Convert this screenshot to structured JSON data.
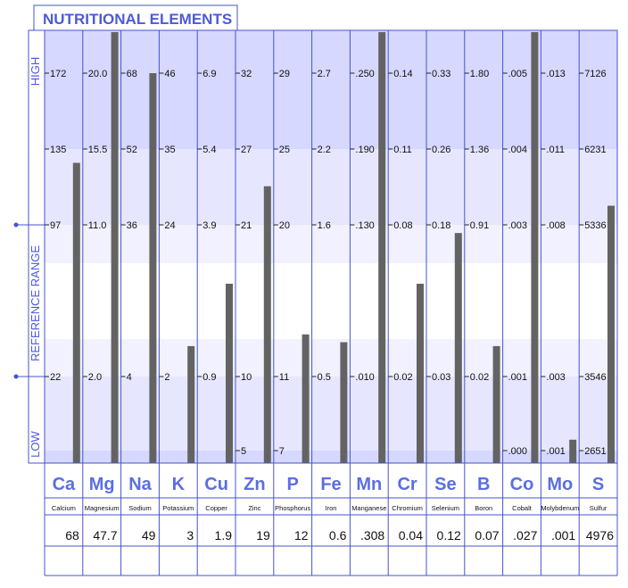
{
  "title": "NUTRITIONAL ELEMENTS",
  "side_labels": {
    "high": "HIGH",
    "reference_range": "REFERENCE RANGE",
    "low": "LOW"
  },
  "colors": {
    "title_text": "#4d5ad8",
    "element_symbol": "#5b6ee1",
    "zone_top_dark": "#d6d8ff",
    "zone_mid": "#e6e7ff",
    "zone_light": "#f1f1ff",
    "zone_white": "#ffffff",
    "bar": "#636363",
    "grid": "#4455cc"
  },
  "chart_data": {
    "type": "bar",
    "title": "NUTRITIONAL ELEMENTS",
    "scale_note": "each column has its own scale; tick values per column at rows HIGH, 135-level, REF-HIGH, REF-LOW, LOW",
    "row_levels": [
      "high",
      "upper",
      "ref_high",
      "ref_low",
      "low"
    ],
    "elements": [
      {
        "symbol": "Ca",
        "name": "Calcium",
        "value_label": "68",
        "value": 68,
        "ticks": [
          "172",
          "135",
          "97",
          "22",
          ""
        ],
        "ticks_num": [
          172,
          135,
          97,
          22
        ]
      },
      {
        "symbol": "Mg",
        "name": "Magnesium",
        "value_label": "47.7",
        "value": 47.7,
        "ticks": [
          "20.0",
          "15.5",
          "11.0",
          "2.0",
          ""
        ],
        "ticks_num": [
          20.0,
          15.5,
          11.0,
          2.0
        ]
      },
      {
        "symbol": "Na",
        "name": "Sodium",
        "value_label": "49",
        "value": 49,
        "ticks": [
          "68",
          "52",
          "36",
          "4",
          ""
        ],
        "ticks_num": [
          68,
          52,
          36,
          4
        ]
      },
      {
        "symbol": "K",
        "name": "Potassium",
        "value_label": "3",
        "value": 3,
        "ticks": [
          "46",
          "35",
          "24",
          "2",
          ""
        ],
        "ticks_num": [
          46,
          35,
          24,
          2
        ]
      },
      {
        "symbol": "Cu",
        "name": "Copper",
        "value_label": "1.9",
        "value": 1.9,
        "ticks": [
          "6.9",
          "5.4",
          "3.9",
          "0.9",
          ""
        ],
        "ticks_num": [
          6.9,
          5.4,
          3.9,
          0.9
        ]
      },
      {
        "symbol": "Zn",
        "name": "Zinc",
        "value_label": "19",
        "value": 19,
        "ticks": [
          "32",
          "27",
          "21",
          "10",
          "5"
        ],
        "ticks_num": [
          32,
          27,
          21,
          10,
          5
        ]
      },
      {
        "symbol": "P",
        "name": "Phosphorus",
        "value_label": "12",
        "value": 12,
        "ticks": [
          "29",
          "25",
          "20",
          "11",
          "7"
        ],
        "ticks_num": [
          29,
          25,
          20,
          11,
          7
        ]
      },
      {
        "symbol": "Fe",
        "name": "Iron",
        "value_label": "0.6",
        "value": 0.6,
        "ticks": [
          "2.7",
          "2.2",
          "1.6",
          "0.5",
          ""
        ],
        "ticks_num": [
          2.7,
          2.2,
          1.6,
          0.5
        ]
      },
      {
        "symbol": "Mn",
        "name": "Manganese",
        "value_label": ".308",
        "value": 0.308,
        "ticks": [
          ".250",
          ".190",
          ".130",
          ".010",
          ""
        ],
        "ticks_num": [
          0.25,
          0.19,
          0.13,
          0.01
        ]
      },
      {
        "symbol": "Cr",
        "name": "Chromium",
        "value_label": "0.04",
        "value": 0.04,
        "ticks": [
          "0.14",
          "0.11",
          "0.08",
          "0.02",
          ""
        ],
        "ticks_num": [
          0.14,
          0.11,
          0.08,
          0.02
        ]
      },
      {
        "symbol": "Se",
        "name": "Selenium",
        "value_label": "0.12",
        "value": 0.12,
        "ticks": [
          "0.33",
          "0.26",
          "0.18",
          "0.03",
          ""
        ],
        "ticks_num": [
          0.33,
          0.26,
          0.18,
          0.03
        ]
      },
      {
        "symbol": "B",
        "name": "Boron",
        "value_label": "0.07",
        "value": 0.07,
        "ticks": [
          "1.80",
          "1.36",
          "0.91",
          "0.02",
          ""
        ],
        "ticks_num": [
          1.8,
          1.36,
          0.91,
          0.02
        ]
      },
      {
        "symbol": "Co",
        "name": "Cobalt",
        "value_label": ".027",
        "value": 0.027,
        "ticks": [
          ".005",
          ".004",
          ".003",
          ".001",
          ".000"
        ],
        "ticks_num": [
          0.005,
          0.004,
          0.003,
          0.001,
          0.0
        ]
      },
      {
        "symbol": "Mo",
        "name": "Molybdenum",
        "value_label": ".001",
        "value": 0.001,
        "ticks": [
          ".013",
          ".011",
          ".008",
          ".003",
          ".001"
        ],
        "ticks_num": [
          0.013,
          0.011,
          0.008,
          0.003,
          0.001
        ]
      },
      {
        "symbol": "S",
        "name": "Sulfur",
        "value_label": "4976",
        "value": 4976,
        "ticks": [
          "7126",
          "6231",
          "5336",
          "3546",
          "2651"
        ],
        "ticks_num": [
          7126,
          6231,
          5336,
          3546,
          2651
        ]
      }
    ],
    "bar_levels": [
      0.77,
      1.2,
      1.0,
      0.3,
      0.46,
      0.71,
      0.33,
      0.31,
      1.2,
      0.46,
      0.59,
      0.3,
      1.2,
      0.06,
      0.66
    ]
  }
}
